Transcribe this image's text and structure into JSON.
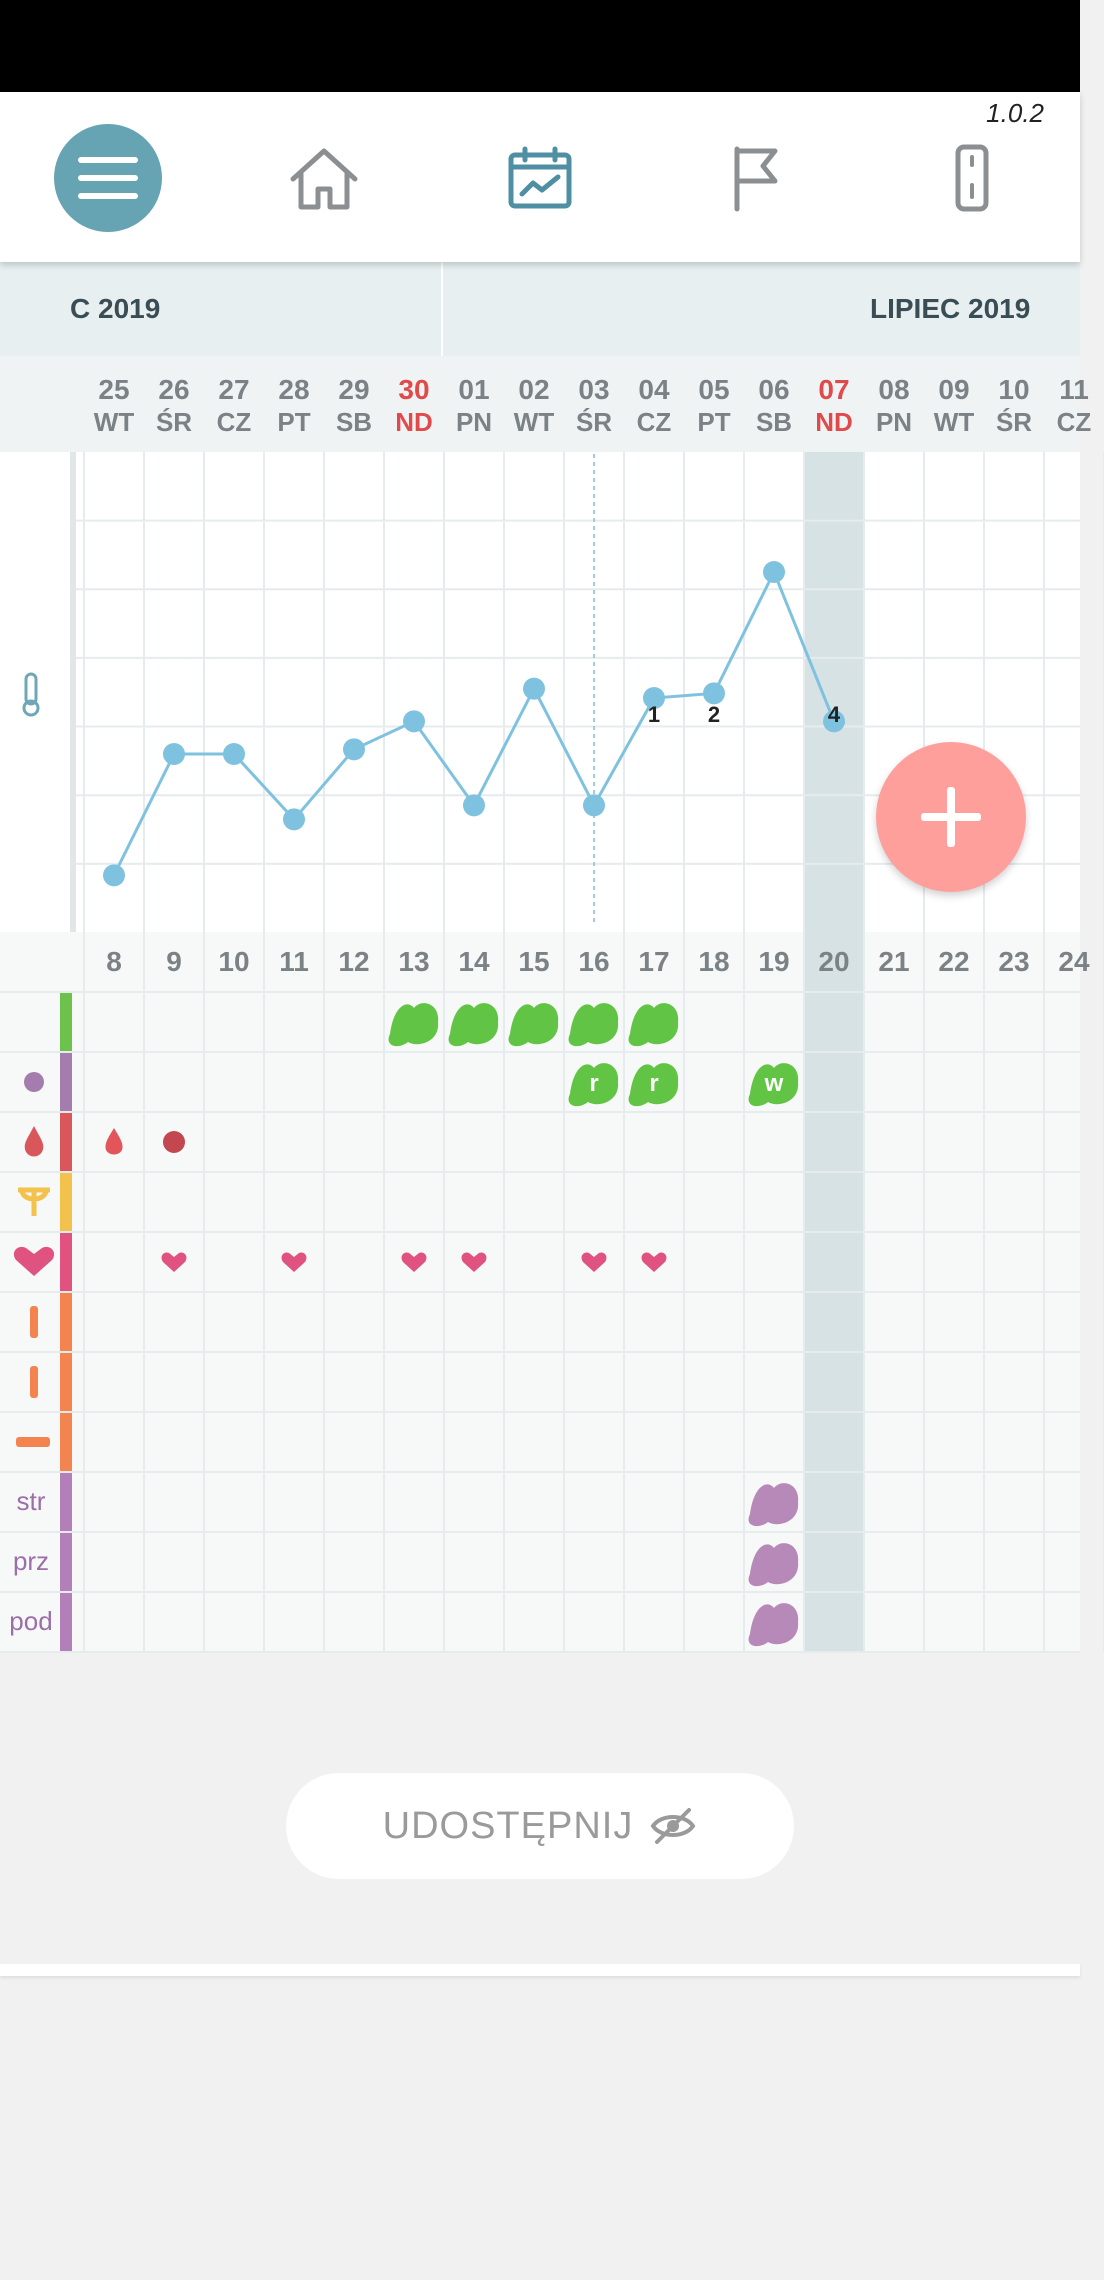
{
  "app": {
    "version": "1.0.2"
  },
  "nav": {
    "items": [
      {
        "icon": "menu-icon"
      },
      {
        "icon": "home-icon"
      },
      {
        "icon": "chart-calendar-icon",
        "active": true
      },
      {
        "icon": "flag-icon"
      },
      {
        "icon": "thermometer-device-icon"
      }
    ]
  },
  "months": {
    "left": "C 2019",
    "right": "LIPIEC 2019"
  },
  "days": [
    {
      "date": "25",
      "wd": "WT",
      "cycle": "8"
    },
    {
      "date": "26",
      "wd": "ŚR",
      "cycle": "9"
    },
    {
      "date": "27",
      "wd": "CZ",
      "cycle": "10"
    },
    {
      "date": "28",
      "wd": "PT",
      "cycle": "11"
    },
    {
      "date": "29",
      "wd": "SB",
      "cycle": "12"
    },
    {
      "date": "30",
      "wd": "ND",
      "cycle": "13",
      "sunday": true
    },
    {
      "date": "01",
      "wd": "PN",
      "cycle": "14"
    },
    {
      "date": "02",
      "wd": "WT",
      "cycle": "15"
    },
    {
      "date": "03",
      "wd": "ŚR",
      "cycle": "16"
    },
    {
      "date": "04",
      "wd": "CZ",
      "cycle": "17"
    },
    {
      "date": "05",
      "wd": "PT",
      "cycle": "18"
    },
    {
      "date": "06",
      "wd": "SB",
      "cycle": "19"
    },
    {
      "date": "07",
      "wd": "ND",
      "cycle": "20",
      "sunday": true,
      "today": true
    },
    {
      "date": "08",
      "wd": "PN",
      "cycle": "21"
    },
    {
      "date": "09",
      "wd": "WT",
      "cycle": "22"
    },
    {
      "date": "10",
      "wd": "ŚR",
      "cycle": "23"
    },
    {
      "date": "11",
      "wd": "CZ",
      "cycle": "24"
    }
  ],
  "temperature": {
    "levels": [
      1,
      3.6,
      3.6,
      2.2,
      3.7,
      4.3,
      2.5,
      5,
      2.5,
      4.8,
      4.9,
      7.5,
      4.3
    ],
    "labels": [
      {
        "day": 9,
        "text": "1"
      },
      {
        "day": 10,
        "text": "2"
      },
      {
        "day": 12,
        "text": "4"
      }
    ],
    "coverline_day": 8,
    "line_color": "#7fc2df"
  },
  "rows": {
    "colors": [
      "#6cc24a",
      "#a57cae",
      "#d9565b",
      "#f2c24d",
      "#e0527f",
      "#f3844f",
      "#f3844f",
      "#f3844f",
      "#b37fb8",
      "#b37fb8",
      "#b37fb8"
    ],
    "symbol_labels": [
      "str",
      "prz",
      "pod"
    ]
  },
  "markers": {
    "bleeding_days": [
      5,
      6,
      7,
      8,
      9
    ],
    "mucus": [
      {
        "day": 8,
        "text": "r"
      },
      {
        "day": 9,
        "text": "r"
      },
      {
        "day": 11,
        "text": "w"
      }
    ],
    "blood_drop_day": 0,
    "blood_dot_day": 1,
    "heart_days": [
      1,
      3,
      5,
      6,
      8,
      9
    ],
    "symptom_days": [
      11
    ]
  },
  "share": {
    "label": "UDOSTĘPNIJ",
    "icon": "eye-off-icon"
  },
  "fab": {
    "icon": "plus-icon"
  }
}
